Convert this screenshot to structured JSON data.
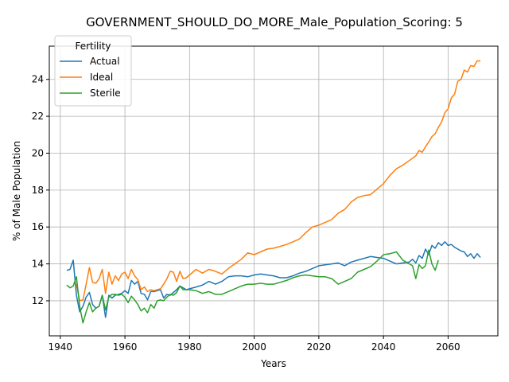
{
  "chart_data": {
    "type": "line",
    "title": "GOVERNMENT_SHOULD_DO_MORE_Male_Population_Scoring: 5",
    "xlabel": "Years",
    "ylabel": "% of Male Population",
    "xlim": [
      1936.6,
      2075.4
    ],
    "ylim": [
      10.1,
      25.8
    ],
    "xticks": [
      1940,
      1960,
      1980,
      2000,
      2020,
      2040,
      2060
    ],
    "yticks": [
      12,
      14,
      16,
      18,
      20,
      22,
      24
    ],
    "grid": true,
    "legend": {
      "title": "Fertility",
      "placement": "top-left"
    },
    "series": [
      {
        "name": "Actual",
        "color": "#1f77b4",
        "x": [
          1942,
          1943,
          1944,
          1945,
          1946,
          1947,
          1948,
          1949,
          1950,
          1951,
          1952,
          1953,
          1954,
          1955,
          1956,
          1957,
          1958,
          1959,
          1960,
          1961,
          1962,
          1963,
          1964,
          1965,
          1966,
          1967,
          1968,
          1969,
          1970,
          1971,
          1972,
          1973,
          1974,
          1975,
          1976,
          1977,
          1978,
          1979,
          1980,
          1982,
          1984,
          1986,
          1988,
          1990,
          1992,
          1994,
          1996,
          1998,
          2000,
          2002,
          2004,
          2006,
          2008,
          2010,
          2012,
          2014,
          2016,
          2018,
          2020,
          2022,
          2024,
          2026,
          2028,
          2030,
          2032,
          2034,
          2036,
          2038,
          2040,
          2042,
          2044,
          2046,
          2048,
          2049,
          2050,
          2051,
          2052,
          2053,
          2054,
          2055,
          2056,
          2057,
          2058,
          2059,
          2060,
          2061,
          2062,
          2063,
          2064,
          2065,
          2066,
          2067,
          2068,
          2069,
          2070
        ],
        "values": [
          13.65,
          13.7,
          14.2,
          12.3,
          11.4,
          11.7,
          12.2,
          12.45,
          11.8,
          11.6,
          11.7,
          12.3,
          11.1,
          12.3,
          12.15,
          12.3,
          12.35,
          12.4,
          12.55,
          12.4,
          13.1,
          12.9,
          13.05,
          12.4,
          12.35,
          12.05,
          12.5,
          12.5,
          12.55,
          12.6,
          12.15,
          12.35,
          12.3,
          12.45,
          12.6,
          12.8,
          12.7,
          12.6,
          12.65,
          12.75,
          12.85,
          13.05,
          12.9,
          13.05,
          13.3,
          13.35,
          13.35,
          13.3,
          13.4,
          13.45,
          13.4,
          13.35,
          13.25,
          13.25,
          13.35,
          13.5,
          13.6,
          13.75,
          13.9,
          13.95,
          14.0,
          14.05,
          13.9,
          14.1,
          14.2,
          14.3,
          14.4,
          14.35,
          14.3,
          14.15,
          14.0,
          14.05,
          14.1,
          14.25,
          14.05,
          14.45,
          14.3,
          14.8,
          14.5,
          15.0,
          14.85,
          15.15,
          15.0,
          15.2,
          15.0,
          15.05,
          14.9,
          14.8,
          14.7,
          14.65,
          14.4,
          14.55,
          14.3,
          14.55,
          14.35
        ]
      },
      {
        "name": "Ideal",
        "color": "#ff7f0e",
        "x": [
          1945,
          1946,
          1947,
          1948,
          1949,
          1950,
          1951,
          1952,
          1953,
          1954,
          1955,
          1956,
          1957,
          1958,
          1959,
          1960,
          1961,
          1962,
          1963,
          1964,
          1965,
          1966,
          1967,
          1968,
          1969,
          1970,
          1971,
          1972,
          1973,
          1974,
          1975,
          1976,
          1977,
          1978,
          1979,
          1980,
          1982,
          1984,
          1986,
          1988,
          1990,
          1992,
          1994,
          1996,
          1998,
          2000,
          2002,
          2004,
          2006,
          2008,
          2010,
          2012,
          2014,
          2016,
          2018,
          2020,
          2022,
          2024,
          2026,
          2028,
          2030,
          2032,
          2034,
          2036,
          2038,
          2040,
          2042,
          2044,
          2046,
          2048,
          2050,
          2051,
          2052,
          2053,
          2054,
          2055,
          2056,
          2057,
          2058,
          2059,
          2060,
          2061,
          2062,
          2063,
          2064,
          2065,
          2066,
          2067,
          2068,
          2069,
          2070
        ],
        "values": [
          12.9,
          12.0,
          12.05,
          12.9,
          13.8,
          13.0,
          12.95,
          13.2,
          13.7,
          12.4,
          13.55,
          12.9,
          13.35,
          13.1,
          13.45,
          13.55,
          13.2,
          13.7,
          13.35,
          13.15,
          12.6,
          12.75,
          12.5,
          12.6,
          12.55,
          12.6,
          12.65,
          12.9,
          13.2,
          13.6,
          13.55,
          13.05,
          13.6,
          13.2,
          13.25,
          13.4,
          13.7,
          13.5,
          13.7,
          13.6,
          13.45,
          13.75,
          14.0,
          14.25,
          14.6,
          14.5,
          14.65,
          14.8,
          14.85,
          14.95,
          15.05,
          15.2,
          15.35,
          15.7,
          16.0,
          16.1,
          16.25,
          16.4,
          16.75,
          16.95,
          17.35,
          17.6,
          17.7,
          17.75,
          18.05,
          18.35,
          18.8,
          19.15,
          19.35,
          19.6,
          19.85,
          20.15,
          20.05,
          20.35,
          20.6,
          20.9,
          21.05,
          21.4,
          21.7,
          22.2,
          22.4,
          23.0,
          23.2,
          23.9,
          24.0,
          24.5,
          24.4,
          24.75,
          24.7,
          25.0,
          25.0
        ]
      },
      {
        "name": "Sterile",
        "color": "#2ca02c",
        "x": [
          1942,
          1943,
          1944,
          1945,
          1946,
          1947,
          1948,
          1949,
          1950,
          1951,
          1952,
          1953,
          1954,
          1955,
          1956,
          1957,
          1958,
          1959,
          1960,
          1961,
          1962,
          1963,
          1964,
          1965,
          1966,
          1967,
          1968,
          1969,
          1970,
          1971,
          1972,
          1973,
          1974,
          1975,
          1976,
          1977,
          1978,
          1979,
          1980,
          1982,
          1984,
          1986,
          1988,
          1990,
          1992,
          1994,
          1996,
          1998,
          2000,
          2002,
          2004,
          2006,
          2008,
          2010,
          2012,
          2014,
          2016,
          2018,
          2020,
          2022,
          2024,
          2026,
          2028,
          2030,
          2032,
          2034,
          2036,
          2038,
          2040,
          2042,
          2044,
          2046,
          2048,
          2049,
          2050,
          2051,
          2052,
          2053,
          2054,
          2055,
          2056,
          2057
        ],
        "values": [
          12.85,
          12.7,
          12.8,
          13.3,
          11.7,
          10.8,
          11.4,
          11.9,
          11.4,
          11.6,
          11.7,
          12.3,
          11.5,
          12.2,
          12.35,
          12.35,
          12.3,
          12.35,
          12.2,
          11.9,
          12.25,
          12.05,
          11.8,
          11.45,
          11.6,
          11.35,
          11.8,
          11.6,
          12.0,
          12.05,
          12.0,
          12.2,
          12.35,
          12.3,
          12.45,
          12.8,
          12.6,
          12.6,
          12.6,
          12.55,
          12.4,
          12.5,
          12.35,
          12.35,
          12.5,
          12.65,
          12.8,
          12.9,
          12.9,
          12.95,
          12.9,
          12.9,
          13.0,
          13.1,
          13.25,
          13.35,
          13.4,
          13.35,
          13.3,
          13.3,
          13.2,
          12.9,
          13.05,
          13.2,
          13.55,
          13.7,
          13.85,
          14.15,
          14.5,
          14.55,
          14.65,
          14.2,
          14.0,
          13.9,
          13.2,
          13.95,
          13.75,
          13.9,
          14.75,
          14.0,
          13.65,
          14.2
        ]
      }
    ]
  }
}
